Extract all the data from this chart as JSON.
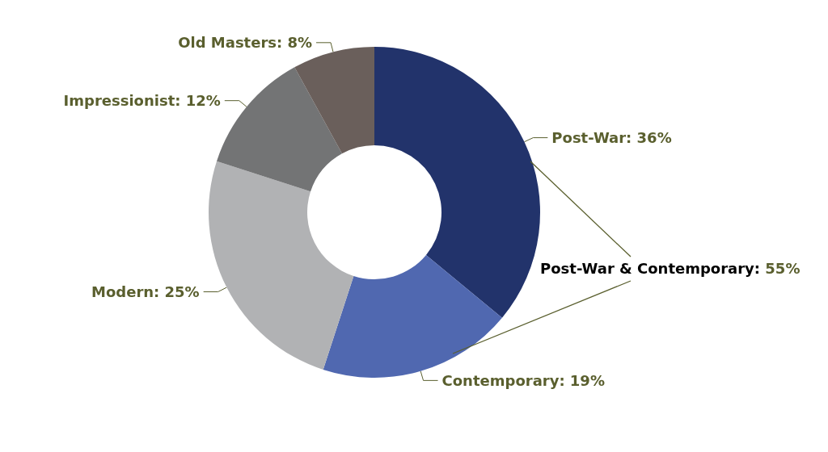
{
  "chart_data": {
    "type": "donut",
    "categories": [
      "Post-War",
      "Contemporary",
      "Modern",
      "Impressionist",
      "Old Masters"
    ],
    "values": [
      36,
      19,
      25,
      12,
      8
    ],
    "value_labels": [
      "36%",
      "19%",
      "25%",
      "12%",
      "8%"
    ],
    "colors": [
      "#22336b",
      "#5068b0",
      "#b1b2b4",
      "#737475",
      "#6a5f5b"
    ],
    "annotations": [
      "Post-War & Contemporary: 55%"
    ],
    "legend": false
  }
}
